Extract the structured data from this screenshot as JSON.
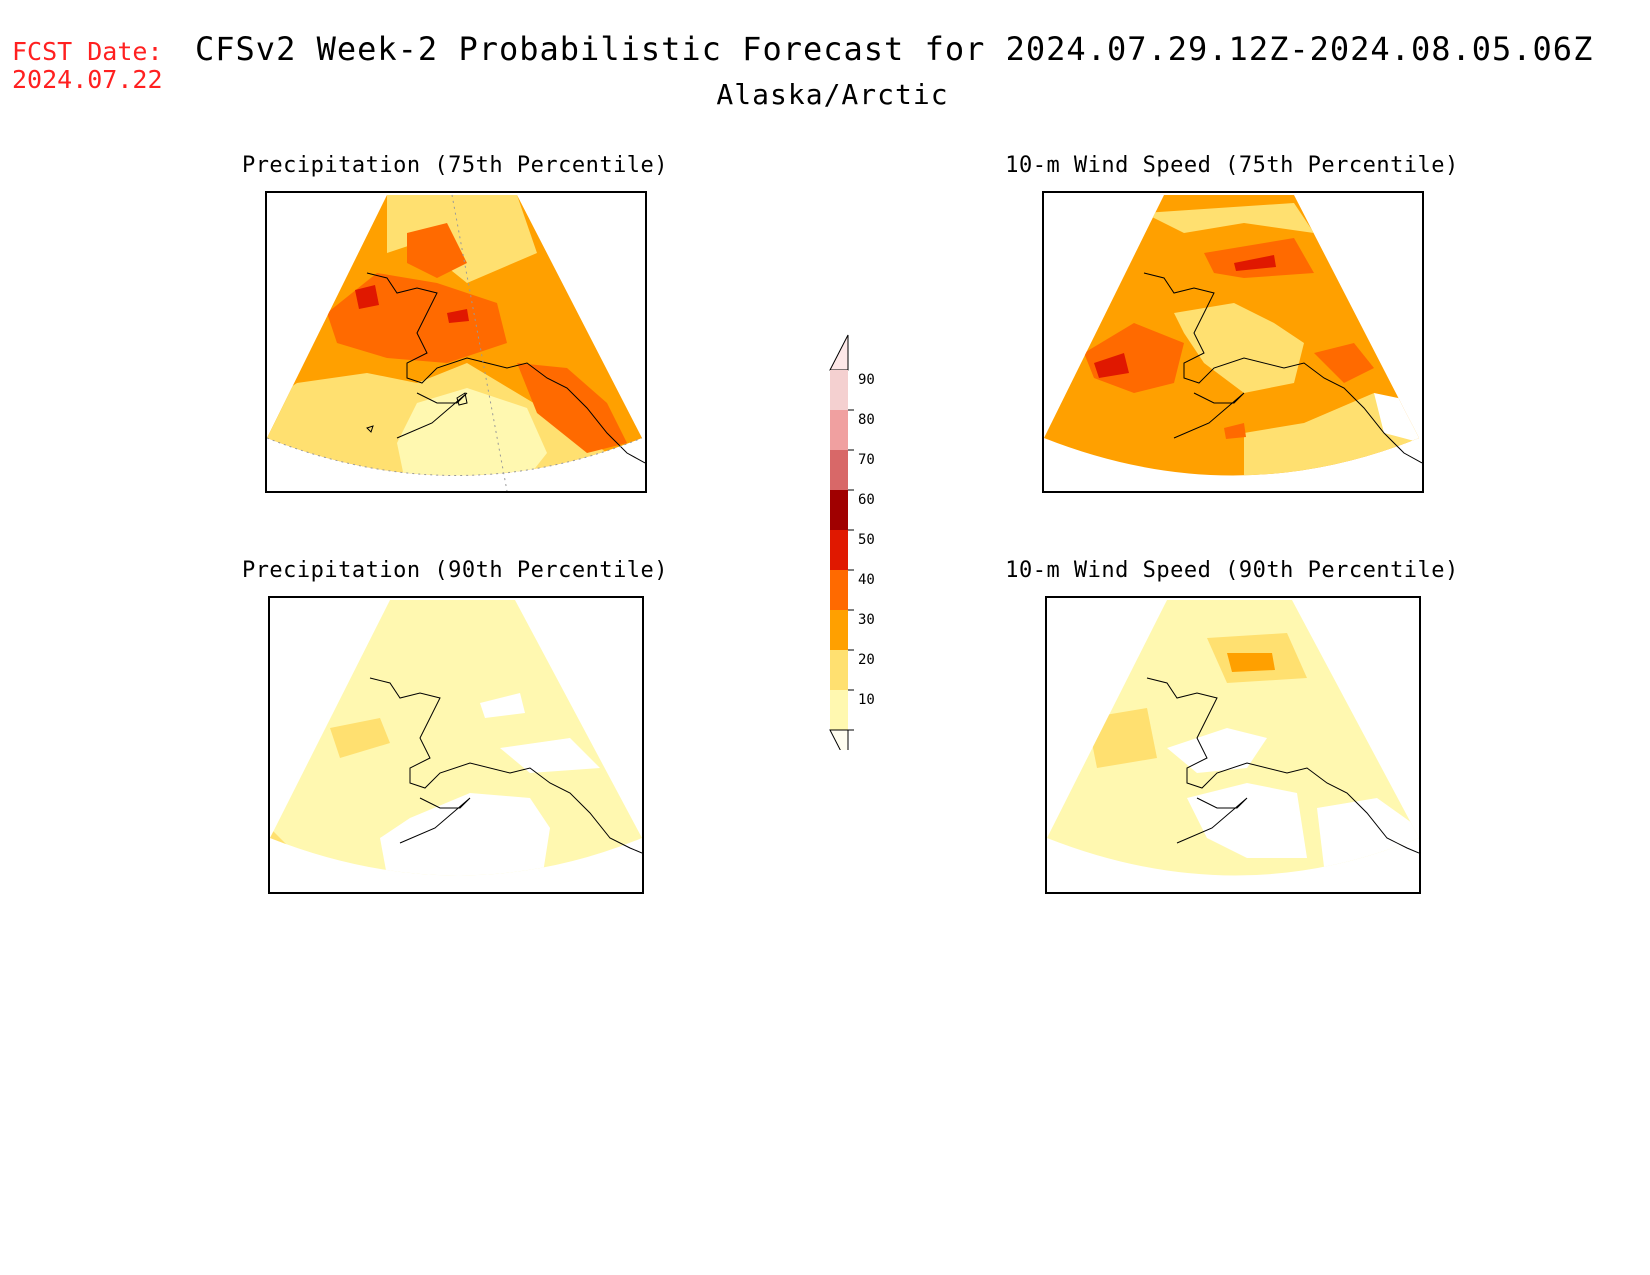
{
  "header": {
    "fcst_label": "FCST Date:",
    "fcst_date": "2024.07.22",
    "title": "CFSv2 Week-2 Probabilistic Forecast for 2024.07.29.12Z-2024.08.05.06Z",
    "subtitle": "Alaska/Arctic"
  },
  "panels": [
    {
      "title": "Precipitation (75th Percentile)"
    },
    {
      "title": "10-m Wind Speed (75th Percentile)"
    },
    {
      "title": "Precipitation (90th Percentile)"
    },
    {
      "title": "10-m Wind Speed (90th Percentile)"
    }
  ],
  "colorbar": {
    "labels": [
      "90",
      "80",
      "70",
      "60",
      "50",
      "40",
      "30",
      "20",
      "10"
    ],
    "colors": [
      "#f4d0d0",
      "#f0a0a0",
      "#d86868",
      "#a00000",
      "#e01800",
      "#ff6a00",
      "#ffa000",
      "#ffe070",
      "#fff8b0"
    ]
  },
  "palette": {
    "c10": "#fff8b0",
    "c20": "#ffe070",
    "c30": "#ffa000",
    "c40": "#ff6a00",
    "c50": "#e01800",
    "fcst_text": "#ff2020"
  }
}
